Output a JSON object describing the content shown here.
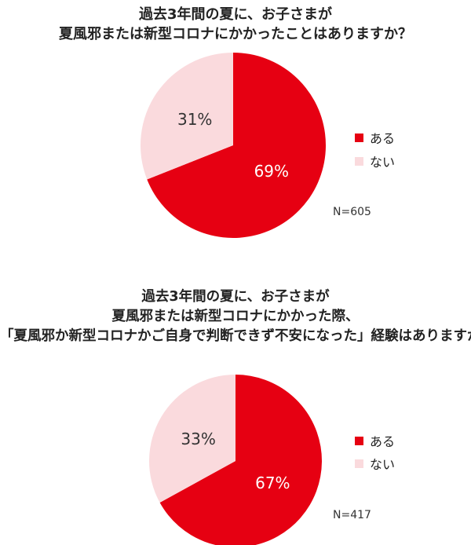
{
  "chart_data": [
    {
      "type": "pie",
      "title": [
        "過去3年間の夏に、お子さまが",
        "夏風邪または新型コロナにかかったことはありますか？"
      ],
      "slices": [
        {
          "name": "ある",
          "value": 69,
          "label": "69%",
          "color": "#e60012"
        },
        {
          "name": "ない",
          "value": 31,
          "label": "31%",
          "color": "#fadadd"
        }
      ],
      "legend": "right",
      "note": "N=605"
    },
    {
      "type": "pie",
      "title": [
        "過去3年間の夏に、お子さまが",
        "夏風邪または新型コロナにかかった際、",
        "「夏風邪か新型コロナかご自身で判断できず不安になった」経験はありますか？"
      ],
      "slices": [
        {
          "name": "ある",
          "value": 67,
          "label": "67%",
          "color": "#e60012"
        },
        {
          "name": "ない",
          "value": 33,
          "label": "33%",
          "color": "#fadadd"
        }
      ],
      "legend": "right",
      "note": "N=417"
    }
  ]
}
